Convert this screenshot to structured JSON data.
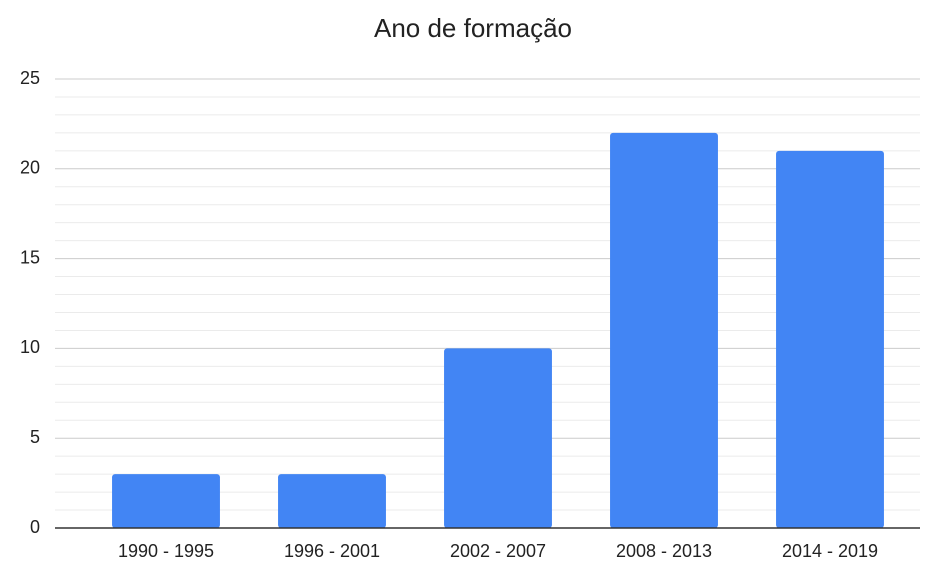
{
  "chart_data": {
    "type": "bar",
    "title": "Ano de formação",
    "categories": [
      "1990 - 1995",
      "1996 - 2001",
      "2002 - 2007",
      "2008 - 2013",
      "2014 - 2019"
    ],
    "values": [
      3,
      3,
      10,
      22,
      21
    ],
    "color": "#4285f4",
    "ylim": [
      0,
      25
    ],
    "yticks": [
      0,
      5,
      10,
      15,
      20,
      25
    ],
    "grid": true,
    "minor_grid": true
  }
}
